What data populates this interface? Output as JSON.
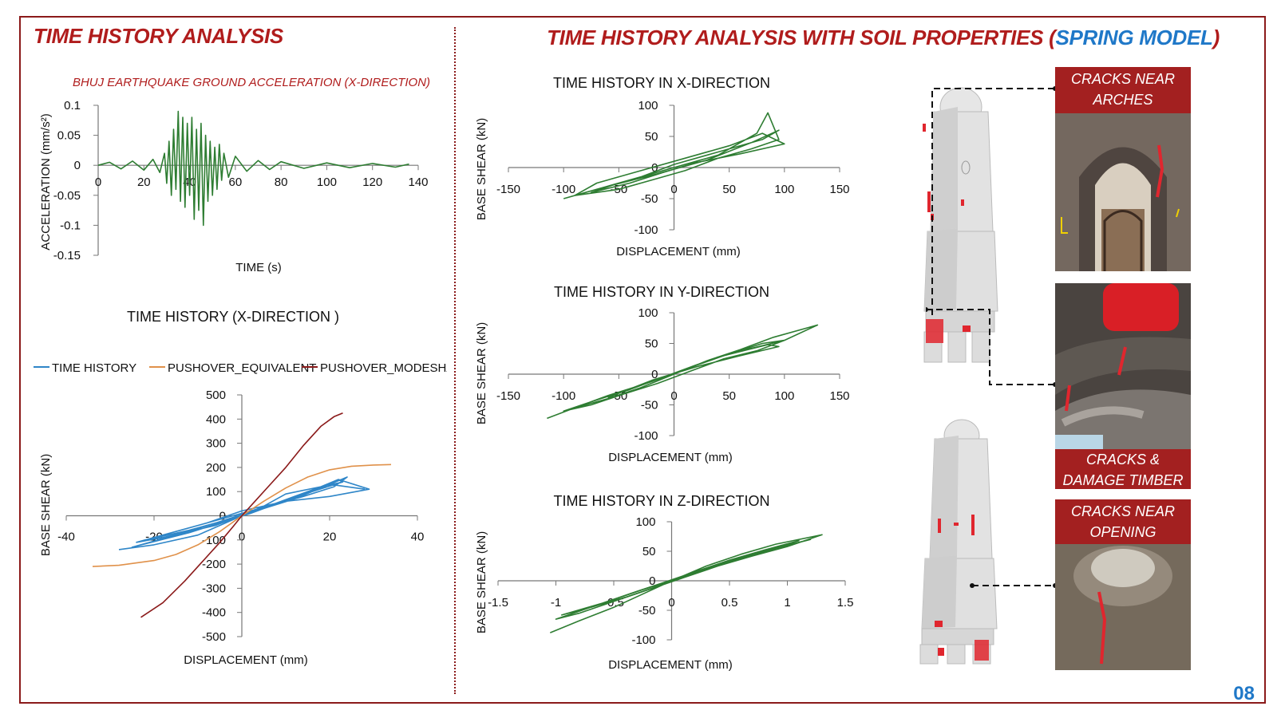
{
  "left_title": "TIME HISTORY ANALYSIS",
  "right_title": {
    "text": "TIME HISTORY ANALYSIS WITH SOIL PROPERTIES (",
    "accent": "SPRING MODEL",
    "close": ")"
  },
  "page_number": "08",
  "colors": {
    "brand_red": "#b01c1c",
    "accent_blue": "#1f78c8",
    "series_green": "#2e7d32",
    "time_history_blue": "#2f86c8",
    "pushover_equivalent": "#e0914a",
    "pushover_modeshape": "#8b1a1a"
  },
  "callouts": {
    "arches": "CRACKS NEAR ARCHES",
    "timber": "CRACKS & DAMAGE TIMBER BEAM",
    "opening": "CRACKS NEAR OPENING"
  },
  "chart_data": [
    {
      "id": "ground-accel",
      "type": "line",
      "title": "BHUJ EARTHQUAKE GROUND ACCELERATION (X-DIRECTION)",
      "xlabel": "TIME (s)",
      "ylabel": "ACCELERATION  (mm/s²)",
      "xlim": [
        0,
        140
      ],
      "ylim": [
        -0.15,
        0.1
      ],
      "xticks": [
        "0",
        "20",
        "40",
        "60",
        "80",
        "100",
        "120",
        "140"
      ],
      "yticks": [
        "0.1",
        "0.05",
        "0",
        "-0.05",
        "-0.1",
        "-0.15"
      ],
      "series": [
        {
          "x": [
            0,
            5,
            10,
            15,
            20,
            24,
            27,
            29,
            30,
            31,
            32,
            33,
            34,
            35,
            36,
            37,
            38,
            39,
            40,
            41,
            42,
            43,
            44,
            45,
            46,
            47,
            48,
            49,
            50,
            51,
            52,
            53,
            54,
            55,
            57,
            60,
            65,
            70,
            75,
            80,
            90,
            100,
            110,
            120,
            130,
            136
          ],
          "y": [
            0,
            0.005,
            -0.006,
            0.007,
            -0.008,
            0.01,
            -0.012,
            0.02,
            -0.03,
            0.04,
            -0.05,
            0.06,
            -0.04,
            0.09,
            -0.06,
            0.08,
            -0.07,
            0.07,
            -0.05,
            0.08,
            -0.09,
            0.06,
            -0.075,
            0.07,
            -0.1,
            0.05,
            -0.06,
            0.04,
            -0.05,
            0.03,
            -0.04,
            0.035,
            -0.025,
            0.02,
            -0.02,
            0.015,
            -0.01,
            0.008,
            -0.007,
            0.006,
            -0.005,
            0.004,
            -0.004,
            0.003,
            -0.003,
            0.002
          ]
        }
      ]
    },
    {
      "id": "th-x-left",
      "type": "line",
      "title": "TIME HISTORY (X-DIRECTION )",
      "xlabel": "DISPLACEMENT (mm)",
      "ylabel": "BASE SHEAR (kN)",
      "xlim": [
        -40,
        40
      ],
      "ylim": [
        -500,
        500
      ],
      "xticks": [
        "-40",
        "-20",
        "0",
        "20",
        "40"
      ],
      "yticks": [
        "500",
        "400",
        "300",
        "200",
        "100",
        "0",
        "-100",
        "-200",
        "-300",
        "-400",
        "-500"
      ],
      "series": [
        {
          "name": "TIME HISTORY",
          "x": [
            -28,
            -20,
            -10,
            -5,
            0,
            5,
            10,
            18,
            22,
            29,
            20,
            10,
            0,
            -8,
            -16,
            -24,
            -18,
            -6,
            4,
            14,
            21,
            24,
            12,
            -2,
            -12,
            -22,
            -14,
            -4,
            8,
            16,
            23,
            18,
            6,
            -6,
            -15,
            -25,
            -12,
            2,
            14,
            20,
            28
          ],
          "y": [
            -140,
            -120,
            -80,
            -40,
            0,
            40,
            90,
            120,
            150,
            110,
            80,
            60,
            20,
            -30,
            -70,
            -110,
            -90,
            -40,
            30,
            80,
            120,
            160,
            70,
            -10,
            -60,
            -100,
            -60,
            -10,
            50,
            100,
            140,
            120,
            40,
            -30,
            -80,
            -130,
            -70,
            10,
            90,
            130,
            110
          ]
        },
        {
          "name": "PUSHOVER_EQUIVALENT",
          "x": [
            -34,
            -28,
            -20,
            -15,
            -10,
            -5,
            0,
            5,
            10,
            15,
            20,
            25,
            30,
            34
          ],
          "y": [
            -210,
            -205,
            -185,
            -160,
            -120,
            -65,
            0,
            60,
            115,
            160,
            190,
            205,
            210,
            212
          ]
        },
        {
          "name": "PUSHOVER_MODESHAPE",
          "x": [
            -23,
            -18,
            -13,
            -9,
            -5,
            -2,
            0,
            3,
            6,
            10,
            14,
            18,
            21,
            23
          ],
          "y": [
            -420,
            -360,
            -270,
            -190,
            -110,
            -45,
            0,
            60,
            120,
            200,
            290,
            370,
            410,
            425
          ]
        }
      ]
    },
    {
      "id": "th-x-spring",
      "type": "line",
      "title": "TIME HISTORY IN X-DIRECTION",
      "xlabel": "DISPLACEMENT (mm)",
      "ylabel": "BASE SHEAR (kN)",
      "xlim": [
        -150,
        150
      ],
      "ylim": [
        -100,
        100
      ],
      "xticks": [
        "-150",
        "-100",
        "-50",
        "0",
        "50",
        "100",
        "150"
      ],
      "yticks": [
        "100",
        "50",
        "0",
        "-50",
        "-100"
      ],
      "series": [
        {
          "x": [
            -100,
            -80,
            -60,
            -40,
            -20,
            0,
            20,
            40,
            60,
            75,
            85,
            95,
            70,
            40,
            10,
            -20,
            -50,
            -90,
            -70,
            -30,
            10,
            50,
            80,
            100,
            60,
            20,
            -10,
            -40,
            -75,
            -55,
            -15,
            30,
            70,
            95,
            80,
            40,
            0,
            -30,
            -60
          ],
          "y": [
            -50,
            -40,
            -30,
            -20,
            -10,
            0,
            10,
            20,
            40,
            55,
            88,
            45,
            30,
            15,
            -5,
            -20,
            -35,
            -45,
            -25,
            -5,
            15,
            35,
            55,
            38,
            22,
            8,
            -8,
            -25,
            -40,
            -28,
            -10,
            12,
            40,
            60,
            45,
            25,
            5,
            -15,
            -30
          ]
        }
      ]
    },
    {
      "id": "th-y-spring",
      "type": "line",
      "title": "TIME HISTORY IN Y-DIRECTION",
      "xlabel": "DISPLACEMENT (mm)",
      "ylabel": "BASE SHEAR (kN)",
      "xlim": [
        -150,
        150
      ],
      "ylim": [
        -100,
        100
      ],
      "xticks": [
        "-150",
        "-100",
        "-50",
        "0",
        "50",
        "100",
        "150"
      ],
      "yticks": [
        "100",
        "50",
        "0",
        "-50",
        "-100"
      ],
      "series": [
        {
          "x": [
            -115,
            -90,
            -60,
            -30,
            0,
            30,
            60,
            90,
            130,
            100,
            70,
            40,
            10,
            -20,
            -50,
            -80,
            -100,
            -70,
            -40,
            -10,
            20,
            50,
            80,
            100,
            75,
            45,
            15,
            -15,
            -45,
            -75,
            -95,
            -60,
            -25,
            10,
            45,
            85,
            95,
            60,
            20,
            -20,
            -60
          ],
          "y": [
            -72,
            -55,
            -40,
            -22,
            0,
            22,
            40,
            60,
            80,
            55,
            42,
            28,
            8,
            -12,
            -30,
            -48,
            -60,
            -42,
            -25,
            -5,
            15,
            33,
            50,
            55,
            38,
            25,
            5,
            -15,
            -32,
            -50,
            -58,
            -35,
            -15,
            8,
            30,
            48,
            45,
            30,
            12,
            -10,
            -38
          ]
        }
      ]
    },
    {
      "id": "th-z-spring",
      "type": "line",
      "title": "TIME HISTORY IN Z-DIRECTION",
      "xlabel": "DISPLACEMENT (mm)",
      "ylabel": "BASE SHEAR (kN)",
      "xlim": [
        -1.5,
        1.5
      ],
      "ylim": [
        -100,
        100
      ],
      "xticks": [
        "-1.5",
        "-1",
        "-0.5",
        "0",
        "0.5",
        "1",
        "1.5"
      ],
      "yticks": [
        "100",
        "50",
        "0",
        "-50",
        "-100"
      ],
      "series": [
        {
          "x": [
            -1.05,
            -0.8,
            -0.5,
            -0.2,
            0,
            0.3,
            0.6,
            0.9,
            1.3,
            1.0,
            0.7,
            0.4,
            0.1,
            -0.2,
            -0.5,
            -0.8,
            -1.0,
            -0.7,
            -0.4,
            -0.1,
            0.2,
            0.5,
            0.8,
            1.1,
            0.8,
            0.5,
            0.2,
            -0.1,
            -0.4,
            -0.75,
            -0.95,
            -0.6,
            -0.3,
            0,
            0.3,
            0.6,
            0.95,
            1.2,
            0.9,
            0.5,
            0.1,
            -0.3,
            -0.7
          ],
          "y": [
            -88,
            -68,
            -45,
            -18,
            0,
            25,
            45,
            62,
            78,
            58,
            42,
            25,
            5,
            -15,
            -35,
            -55,
            -65,
            -45,
            -28,
            -8,
            12,
            32,
            50,
            68,
            52,
            35,
            15,
            -5,
            -25,
            -48,
            -58,
            -38,
            -18,
            0,
            20,
            40,
            58,
            70,
            55,
            32,
            8,
            -18,
            -45
          ]
        }
      ]
    }
  ]
}
